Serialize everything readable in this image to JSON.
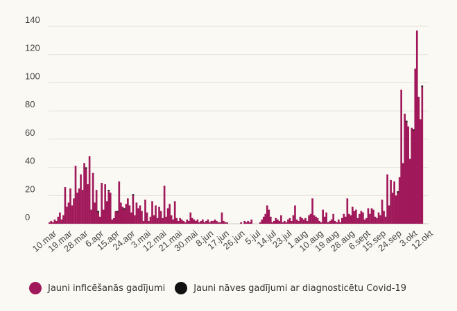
{
  "chart_data": {
    "type": "bar",
    "title": "",
    "xlabel": "",
    "ylabel": "",
    "ylim": [
      0,
      140
    ],
    "yticks": [
      0,
      20,
      40,
      60,
      80,
      100,
      120,
      140
    ],
    "grid": true,
    "start_date": "2020-03-08",
    "x_tick_labels": [
      "10.mar",
      "19.mar",
      "28.mar",
      "6.apr",
      "15.apr",
      "24.apr",
      "3.mai",
      "12.mai",
      "21.mai",
      "30.mai",
      "8.jun",
      "17.jun",
      "26.jun",
      "5.jul",
      "14.jul",
      "23.jul",
      "1.aug",
      "10.aug",
      "19.aug",
      "28.aug",
      "6.sept",
      "15.sep",
      "24.sep",
      "3.okt",
      "12.okt"
    ],
    "series": [
      {
        "name": "Jauni inficēšanās gadījumi",
        "color": "#a0195a",
        "values": [
          1,
          2,
          1,
          3,
          2,
          5,
          8,
          3,
          6,
          26,
          12,
          15,
          25,
          13,
          18,
          41,
          22,
          25,
          35,
          24,
          43,
          39,
          28,
          48,
          10,
          36,
          15,
          24,
          8,
          5,
          29,
          10,
          28,
          16,
          23,
          22,
          3,
          4,
          9,
          8,
          30,
          15,
          12,
          10,
          14,
          18,
          13,
          8,
          20,
          6,
          15,
          11,
          13,
          9,
          2,
          17,
          8,
          2,
          5,
          16,
          6,
          13,
          4,
          12,
          9,
          4,
          27,
          5,
          11,
          14,
          6,
          3,
          16,
          4,
          2,
          4,
          3,
          2,
          1,
          3,
          2,
          8,
          4,
          3,
          2,
          3,
          1,
          2,
          3,
          1,
          2,
          3,
          1,
          2,
          2,
          3,
          2,
          1,
          1,
          8,
          2,
          1,
          1,
          0,
          0,
          0,
          0,
          0,
          0,
          0,
          1,
          0,
          2,
          1,
          2,
          1,
          3,
          0,
          0,
          0,
          0,
          1,
          3,
          5,
          7,
          13,
          10,
          5,
          1,
          2,
          4,
          3,
          2,
          6,
          1,
          2,
          1,
          3,
          4,
          2,
          6,
          13,
          3,
          2,
          5,
          4,
          3,
          4,
          2,
          6,
          7,
          18,
          6,
          5,
          4,
          2,
          1,
          10,
          5,
          8,
          1,
          2,
          3,
          7,
          2,
          1,
          3,
          1,
          4,
          7,
          5,
          18,
          7,
          6,
          12,
          9,
          10,
          4,
          7,
          9,
          8,
          3,
          4,
          11,
          7,
          11,
          10,
          5,
          4,
          8,
          6,
          17,
          9,
          5,
          35,
          13,
          31,
          22,
          30,
          20,
          22,
          33,
          95,
          43,
          78,
          72,
          69,
          46,
          68,
          66,
          110,
          137,
          90,
          74,
          97
        ]
      },
      {
        "name": "Jauni nāves gadījumi ar diagnosticētu Covid-19",
        "color": "#111111",
        "values": [
          0,
          0,
          0,
          0,
          0,
          0,
          0,
          0,
          0,
          0,
          0,
          0,
          0,
          0,
          0,
          0,
          0,
          0,
          0,
          0,
          0,
          1,
          0,
          0,
          0,
          0,
          0,
          0,
          1,
          0,
          0,
          0,
          0,
          0,
          1,
          0,
          0,
          0,
          0,
          1,
          0,
          0,
          0,
          1,
          0,
          0,
          0,
          0,
          1,
          0,
          0,
          0,
          0,
          0,
          0,
          0,
          0,
          0,
          0,
          0,
          0,
          0,
          0,
          0,
          0,
          0,
          0,
          0,
          0,
          0,
          0,
          0,
          0,
          0,
          0,
          0,
          0,
          0,
          0,
          0,
          0,
          0,
          0,
          0,
          0,
          0,
          0,
          0,
          0,
          0,
          0,
          0,
          0,
          0,
          0,
          0,
          0,
          0,
          0,
          0,
          0,
          0,
          0,
          0,
          0,
          0,
          0,
          0,
          0,
          0,
          0,
          0,
          0,
          0,
          0,
          0,
          0,
          0,
          0,
          0,
          0,
          0,
          0,
          0,
          0,
          0,
          0,
          0,
          0,
          0,
          0,
          0,
          0,
          0,
          0,
          0,
          0,
          0,
          0,
          0,
          0,
          0,
          0,
          0,
          0,
          0,
          0,
          0,
          0,
          0,
          0,
          0,
          0,
          0,
          0,
          0,
          0,
          0,
          0,
          0,
          0,
          0,
          0,
          0,
          0,
          0,
          0,
          0,
          0,
          0,
          0,
          0,
          0,
          0,
          0,
          0,
          0,
          0,
          0,
          0,
          0,
          0,
          0,
          0,
          0,
          0,
          0,
          0,
          0,
          0,
          0,
          0,
          0,
          0,
          0,
          0,
          0,
          0,
          0,
          0,
          1,
          0,
          0,
          0,
          0,
          1,
          0,
          0,
          0,
          1,
          0,
          0,
          0,
          0,
          1
        ]
      }
    ]
  },
  "legend": {
    "items": [
      {
        "label": "Jauni inficēšanās gadījumi",
        "color": "#a0195a"
      },
      {
        "label": "Jauni nāves gadījumi ar diagnosticētu Covid-19",
        "color": "#111111"
      }
    ]
  }
}
